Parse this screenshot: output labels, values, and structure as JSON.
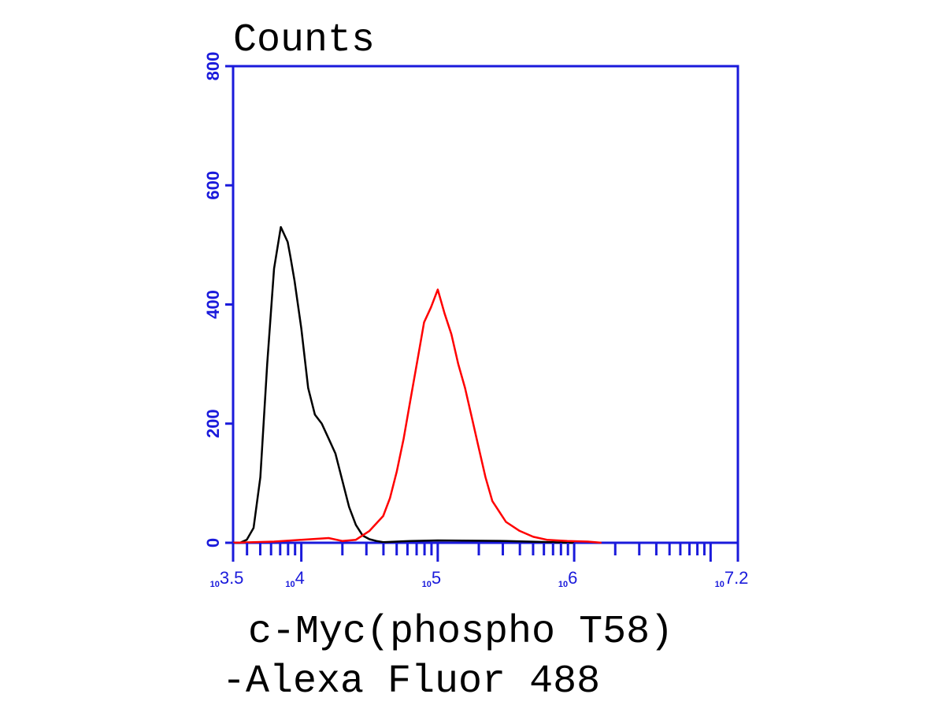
{
  "chart_data": {
    "type": "line",
    "ylabel": "Counts",
    "xlabel_lines": [
      "c-Myc(phospho T58)",
      "-Alexa Fluor 488"
    ],
    "x_scale": "log10",
    "xlim": [
      3.5,
      7.2
    ],
    "ylim": [
      0,
      800
    ],
    "y_ticks": [
      {
        "value": 0,
        "label": "0"
      },
      {
        "value": 200,
        "label": "200"
      },
      {
        "value": 400,
        "label": "400"
      },
      {
        "value": 600,
        "label": "600"
      },
      {
        "value": 800,
        "label": "800"
      }
    ],
    "x_tick_labels": [
      {
        "base": "10",
        "exp": "3.5",
        "value": 3.5
      },
      {
        "base": "10",
        "exp": "4",
        "value": 4.0
      },
      {
        "base": "10",
        "exp": "5",
        "value": 5.0
      },
      {
        "base": "10",
        "exp": "6",
        "value": 6.0
      },
      {
        "base": "10",
        "exp": "7.2",
        "value": 7.2
      }
    ],
    "grid": false,
    "axis_color": "#1a1adb",
    "series": [
      {
        "color": "#000000",
        "x": [
          3.5,
          3.55,
          3.6,
          3.65,
          3.7,
          3.75,
          3.8,
          3.85,
          3.9,
          3.92,
          3.95,
          4.0,
          4.05,
          4.1,
          4.15,
          4.2,
          4.25,
          4.3,
          4.35,
          4.4,
          4.45,
          4.5,
          4.55,
          4.6,
          4.7,
          4.8,
          5.0,
          5.5,
          6.0
        ],
        "y": [
          0,
          0,
          5,
          25,
          110,
          300,
          460,
          530,
          505,
          480,
          440,
          360,
          260,
          215,
          200,
          175,
          150,
          105,
          60,
          30,
          12,
          6,
          3,
          1,
          2,
          3,
          4,
          3,
          0
        ]
      },
      {
        "color": "#ff0000",
        "x": [
          3.5,
          3.8,
          4.0,
          4.2,
          4.3,
          4.4,
          4.5,
          4.6,
          4.65,
          4.7,
          4.75,
          4.8,
          4.85,
          4.9,
          4.95,
          5.0,
          5.05,
          5.1,
          5.15,
          5.2,
          5.25,
          5.3,
          5.35,
          5.4,
          5.5,
          5.6,
          5.7,
          5.8,
          5.95,
          6.1,
          6.2
        ],
        "y": [
          0,
          2,
          5,
          8,
          3,
          5,
          20,
          45,
          75,
          120,
          175,
          240,
          305,
          370,
          395,
          425,
          385,
          350,
          300,
          260,
          210,
          160,
          110,
          70,
          35,
          20,
          10,
          5,
          3,
          2,
          0
        ]
      }
    ]
  }
}
